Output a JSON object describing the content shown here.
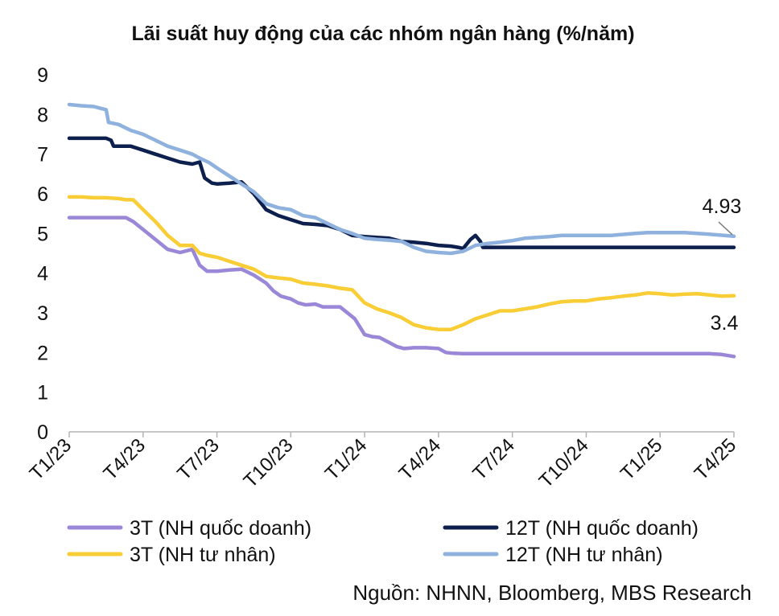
{
  "chart_data": {
    "type": "line",
    "title": "Lãi suất huy động của các nhóm ngân hàng (%/năm)",
    "source": "Nguồn: NHNN, Bloomberg, MBS Research",
    "ylim": [
      0,
      9
    ],
    "yticks": [
      "0",
      "1",
      "2",
      "3",
      "4",
      "5",
      "6",
      "7",
      "8",
      "9"
    ],
    "xticks": [
      "T1/23",
      "T4/23",
      "T7/23",
      "T10/23",
      "T1/24",
      "T4/24",
      "T7/24",
      "T10/24",
      "T1/25",
      "T4/25"
    ],
    "grid": false,
    "legend_position": "bottom",
    "colors": {
      "s3t_state": "#9b87d8",
      "s12t_state": "#0d1f4d",
      "s3t_private": "#f8cd36",
      "s12t_private": "#8fb1dd",
      "axis": "#b3b3b3"
    },
    "series": [
      {
        "name": "3T (NH quốc doanh)",
        "color": "#9b87d8",
        "points": [
          [
            0,
            5.4
          ],
          [
            0.5,
            5.4
          ],
          [
            1,
            5.4
          ],
          [
            1.5,
            5.4
          ],
          [
            2,
            5.4
          ],
          [
            2.3,
            5.4
          ],
          [
            2.6,
            5.3
          ],
          [
            3,
            5.1
          ],
          [
            3.5,
            4.85
          ],
          [
            4,
            4.6
          ],
          [
            4.5,
            4.52
          ],
          [
            5,
            4.6
          ],
          [
            5.3,
            4.2
          ],
          [
            5.6,
            4.05
          ],
          [
            6,
            4.05
          ],
          [
            6.5,
            4.08
          ],
          [
            7,
            4.1
          ],
          [
            7.5,
            3.95
          ],
          [
            8,
            3.75
          ],
          [
            8.3,
            3.55
          ],
          [
            8.6,
            3.42
          ],
          [
            9,
            3.35
          ],
          [
            9.3,
            3.25
          ],
          [
            9.6,
            3.2
          ],
          [
            10,
            3.22
          ],
          [
            10.3,
            3.15
          ],
          [
            10.6,
            3.15
          ],
          [
            11,
            3.15
          ],
          [
            11.3,
            3.0
          ],
          [
            11.6,
            2.85
          ],
          [
            12,
            2.45
          ],
          [
            12.3,
            2.4
          ],
          [
            12.6,
            2.38
          ],
          [
            13,
            2.25
          ],
          [
            13.3,
            2.15
          ],
          [
            13.6,
            2.1
          ],
          [
            14,
            2.12
          ],
          [
            14.5,
            2.12
          ],
          [
            15,
            2.1
          ],
          [
            15.3,
            2.0
          ],
          [
            15.6,
            1.98
          ],
          [
            16,
            1.97
          ],
          [
            17,
            1.97
          ],
          [
            18,
            1.97
          ],
          [
            19,
            1.97
          ],
          [
            20,
            1.97
          ],
          [
            21,
            1.97
          ],
          [
            22,
            1.97
          ],
          [
            23,
            1.97
          ],
          [
            24,
            1.97
          ],
          [
            25,
            1.97
          ],
          [
            26,
            1.97
          ],
          [
            26.5,
            1.95
          ],
          [
            27,
            1.9
          ]
        ]
      },
      {
        "name": "12T (NH quốc doanh)",
        "color": "#0d1f4d",
        "points": [
          [
            0,
            7.4
          ],
          [
            0.5,
            7.4
          ],
          [
            1,
            7.4
          ],
          [
            1.5,
            7.4
          ],
          [
            1.7,
            7.35
          ],
          [
            1.8,
            7.2
          ],
          [
            2.2,
            7.2
          ],
          [
            2.5,
            7.2
          ],
          [
            3,
            7.1
          ],
          [
            3.5,
            7.0
          ],
          [
            4,
            6.9
          ],
          [
            4.5,
            6.8
          ],
          [
            5,
            6.75
          ],
          [
            5.3,
            6.8
          ],
          [
            5.5,
            6.4
          ],
          [
            5.8,
            6.27
          ],
          [
            6,
            6.25
          ],
          [
            6.5,
            6.27
          ],
          [
            7,
            6.3
          ],
          [
            7.5,
            6.0
          ],
          [
            8,
            5.6
          ],
          [
            8.5,
            5.45
          ],
          [
            9,
            5.35
          ],
          [
            9.5,
            5.25
          ],
          [
            10,
            5.23
          ],
          [
            10.5,
            5.2
          ],
          [
            11,
            5.1
          ],
          [
            11.5,
            4.95
          ],
          [
            12,
            4.92
          ],
          [
            12.5,
            4.9
          ],
          [
            13,
            4.88
          ],
          [
            13.5,
            4.8
          ],
          [
            14,
            4.78
          ],
          [
            14.5,
            4.75
          ],
          [
            15,
            4.7
          ],
          [
            15.5,
            4.68
          ],
          [
            15.8,
            4.65
          ],
          [
            16,
            4.62
          ],
          [
            16.3,
            4.85
          ],
          [
            16.5,
            4.95
          ],
          [
            16.7,
            4.8
          ],
          [
            16.8,
            4.65
          ],
          [
            17,
            4.65
          ],
          [
            18,
            4.65
          ],
          [
            19,
            4.65
          ],
          [
            20,
            4.65
          ],
          [
            21,
            4.65
          ],
          [
            22,
            4.65
          ],
          [
            23,
            4.65
          ],
          [
            24,
            4.65
          ],
          [
            25,
            4.65
          ],
          [
            26,
            4.65
          ],
          [
            27,
            4.65
          ]
        ]
      },
      {
        "name": "3T (NH tư nhân)",
        "color": "#f8cd36",
        "points": [
          [
            0,
            5.92
          ],
          [
            0.5,
            5.92
          ],
          [
            1,
            5.9
          ],
          [
            1.5,
            5.9
          ],
          [
            2,
            5.88
          ],
          [
            2.3,
            5.85
          ],
          [
            2.6,
            5.85
          ],
          [
            3,
            5.6
          ],
          [
            3.5,
            5.3
          ],
          [
            4,
            4.95
          ],
          [
            4.5,
            4.7
          ],
          [
            5,
            4.7
          ],
          [
            5.3,
            4.5
          ],
          [
            5.6,
            4.45
          ],
          [
            6,
            4.4
          ],
          [
            6.5,
            4.3
          ],
          [
            7,
            4.2
          ],
          [
            7.5,
            4.1
          ],
          [
            8,
            3.92
          ],
          [
            8.5,
            3.88
          ],
          [
            9,
            3.85
          ],
          [
            9.5,
            3.75
          ],
          [
            10,
            3.72
          ],
          [
            10.5,
            3.68
          ],
          [
            11,
            3.62
          ],
          [
            11.5,
            3.58
          ],
          [
            12,
            3.25
          ],
          [
            12.5,
            3.1
          ],
          [
            13,
            3.0
          ],
          [
            13.5,
            2.88
          ],
          [
            14,
            2.7
          ],
          [
            14.5,
            2.62
          ],
          [
            15,
            2.58
          ],
          [
            15.5,
            2.58
          ],
          [
            16,
            2.7
          ],
          [
            16.5,
            2.85
          ],
          [
            17,
            2.95
          ],
          [
            17.5,
            3.05
          ],
          [
            18,
            3.05
          ],
          [
            18.5,
            3.1
          ],
          [
            19,
            3.15
          ],
          [
            19.5,
            3.22
          ],
          [
            20,
            3.28
          ],
          [
            20.5,
            3.3
          ],
          [
            21,
            3.3
          ],
          [
            21.5,
            3.35
          ],
          [
            22,
            3.38
          ],
          [
            22.5,
            3.42
          ],
          [
            23,
            3.45
          ],
          [
            23.5,
            3.5
          ],
          [
            24,
            3.48
          ],
          [
            24.5,
            3.45
          ],
          [
            25,
            3.47
          ],
          [
            25.5,
            3.48
          ],
          [
            26,
            3.45
          ],
          [
            26.5,
            3.42
          ],
          [
            27,
            3.43
          ]
        ]
      },
      {
        "name": "12T (NH tư nhân)",
        "color": "#8fb1dd",
        "points": [
          [
            0,
            8.25
          ],
          [
            0.5,
            8.22
          ],
          [
            1,
            8.2
          ],
          [
            1.3,
            8.15
          ],
          [
            1.5,
            8.12
          ],
          [
            1.6,
            7.8
          ],
          [
            2,
            7.75
          ],
          [
            2.5,
            7.6
          ],
          [
            3,
            7.5
          ],
          [
            3.5,
            7.35
          ],
          [
            4,
            7.2
          ],
          [
            4.5,
            7.1
          ],
          [
            5,
            7.0
          ],
          [
            5.3,
            6.9
          ],
          [
            5.7,
            6.78
          ],
          [
            6,
            6.65
          ],
          [
            6.5,
            6.45
          ],
          [
            7,
            6.25
          ],
          [
            7.5,
            6.05
          ],
          [
            8,
            5.75
          ],
          [
            8.5,
            5.65
          ],
          [
            9,
            5.6
          ],
          [
            9.5,
            5.45
          ],
          [
            10,
            5.4
          ],
          [
            10.5,
            5.25
          ],
          [
            11,
            5.1
          ],
          [
            11.5,
            5.0
          ],
          [
            12,
            4.88
          ],
          [
            12.5,
            4.85
          ],
          [
            13,
            4.83
          ],
          [
            13.5,
            4.8
          ],
          [
            14,
            4.65
          ],
          [
            14.5,
            4.55
          ],
          [
            15,
            4.52
          ],
          [
            15.5,
            4.5
          ],
          [
            16,
            4.55
          ],
          [
            16.5,
            4.7
          ],
          [
            17,
            4.75
          ],
          [
            17.5,
            4.78
          ],
          [
            18,
            4.82
          ],
          [
            18.5,
            4.88
          ],
          [
            19,
            4.9
          ],
          [
            19.5,
            4.92
          ],
          [
            20,
            4.95
          ],
          [
            21,
            4.95
          ],
          [
            22,
            4.95
          ],
          [
            23,
            5.0
          ],
          [
            23.5,
            5.02
          ],
          [
            24,
            5.02
          ],
          [
            25,
            5.02
          ],
          [
            25.5,
            5.0
          ],
          [
            26,
            4.98
          ],
          [
            27,
            4.93
          ]
        ]
      }
    ],
    "annotations": [
      {
        "label": "4.93",
        "series": "12T (NH tư nhân)",
        "y": 4.93
      },
      {
        "label": "3.4",
        "series": "3T (NH tư nhân)",
        "y": 3.43
      }
    ]
  }
}
